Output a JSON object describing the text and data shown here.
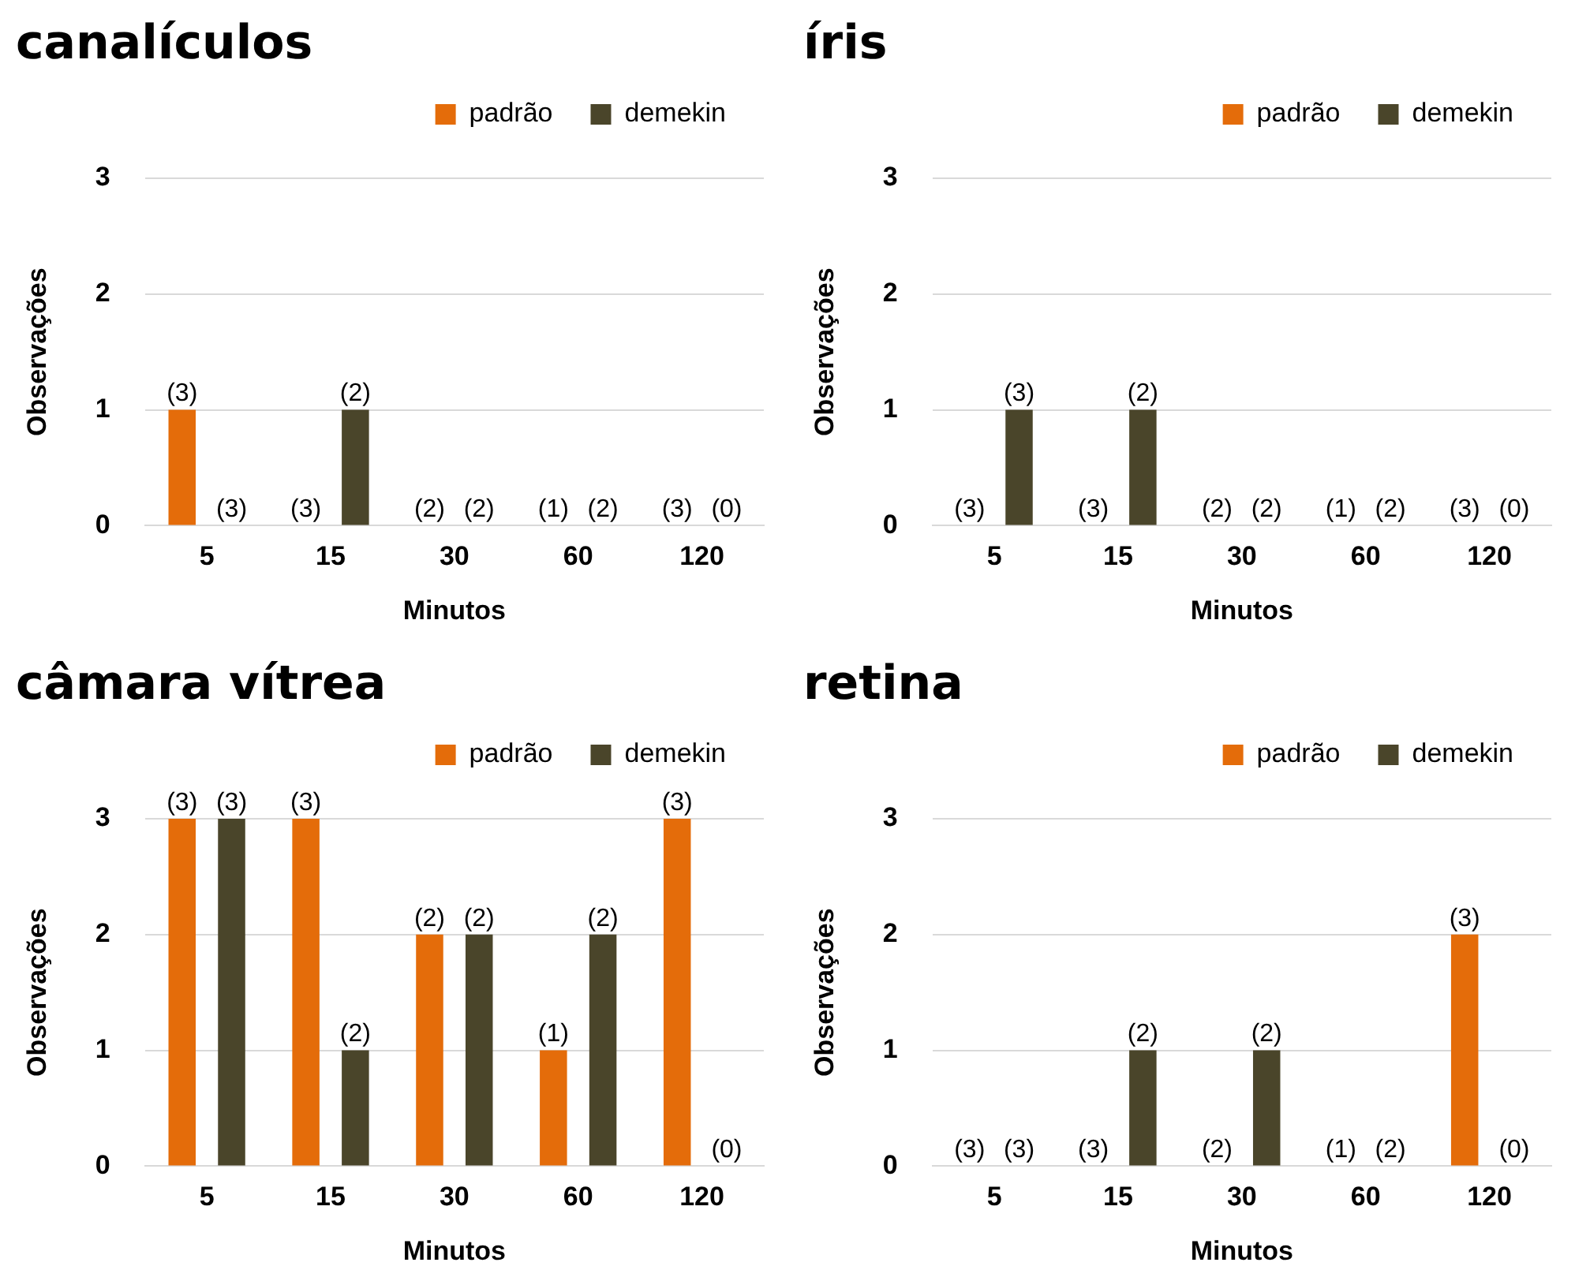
{
  "chart_data": [
    {
      "type": "bar",
      "title": "canalículos",
      "xlabel": "Minutos",
      "ylabel": "Observações",
      "categories": [
        "5",
        "15",
        "30",
        "60",
        "120"
      ],
      "ylim": [
        0,
        3
      ],
      "yticks": [
        0,
        1,
        2,
        3
      ],
      "grid": "y",
      "legend": "top right",
      "series": [
        {
          "name": "padrão",
          "color": "#e46c0a",
          "values": [
            1,
            0,
            0,
            0,
            0
          ]
        },
        {
          "name": "demekin",
          "color": "#4a452a",
          "values": [
            0,
            1,
            0,
            0,
            0
          ]
        }
      ],
      "annotations": [
        "(3)",
        "(3)",
        "(3)",
        "(2)",
        "(2)",
        "(2)",
        "(1)",
        "(2)",
        "(3)",
        "(0)"
      ]
    },
    {
      "type": "bar",
      "title": "íris",
      "xlabel": "Minutos",
      "ylabel": "Observações",
      "categories": [
        "5",
        "15",
        "30",
        "60",
        "120"
      ],
      "ylim": [
        0,
        3
      ],
      "yticks": [
        0,
        1,
        2,
        3
      ],
      "grid": "y",
      "legend": "top right",
      "series": [
        {
          "name": "padrão",
          "color": "#e46c0a",
          "values": [
            0,
            0,
            0,
            0,
            0
          ]
        },
        {
          "name": "demekin",
          "color": "#4a452a",
          "values": [
            1,
            1,
            0,
            0,
            0
          ]
        }
      ],
      "annotations": [
        "(3)",
        "(3)",
        "(3)",
        "(2)",
        "(2)",
        "(2)",
        "(1)",
        "(2)",
        "(3)",
        "(0)"
      ]
    },
    {
      "type": "bar",
      "title": "câmara vítrea",
      "xlabel": "Minutos",
      "ylabel": "Observações",
      "categories": [
        "5",
        "15",
        "30",
        "60",
        "120"
      ],
      "ylim": [
        0,
        3
      ],
      "yticks": [
        0,
        1,
        2,
        3
      ],
      "grid": "y",
      "legend": "top right",
      "series": [
        {
          "name": "padrão",
          "color": "#e46c0a",
          "values": [
            3,
            3,
            2,
            1,
            3
          ]
        },
        {
          "name": "demekin",
          "color": "#4a452a",
          "values": [
            3,
            1,
            2,
            2,
            0
          ]
        }
      ],
      "annotations": [
        "(3)",
        "(3)",
        "(3)",
        "(2)",
        "(2)",
        "(2)",
        "(1)",
        "(2)",
        "(3)",
        "(0)"
      ]
    },
    {
      "type": "bar",
      "title": "retina",
      "xlabel": "Minutos",
      "ylabel": "Observações",
      "categories": [
        "5",
        "15",
        "30",
        "60",
        "120"
      ],
      "ylim": [
        0,
        3
      ],
      "yticks": [
        0,
        1,
        2,
        3
      ],
      "grid": "y",
      "legend": "top right",
      "series": [
        {
          "name": "padrão",
          "color": "#e46c0a",
          "values": [
            0,
            0,
            0,
            0,
            2
          ]
        },
        {
          "name": "demekin",
          "color": "#4a452a",
          "values": [
            0,
            1,
            1,
            0,
            0
          ]
        }
      ],
      "annotations": [
        "(3)",
        "(3)",
        "(3)",
        "(2)",
        "(2)",
        "(2)",
        "(1)",
        "(2)",
        "(3)",
        "(0)"
      ]
    }
  ]
}
